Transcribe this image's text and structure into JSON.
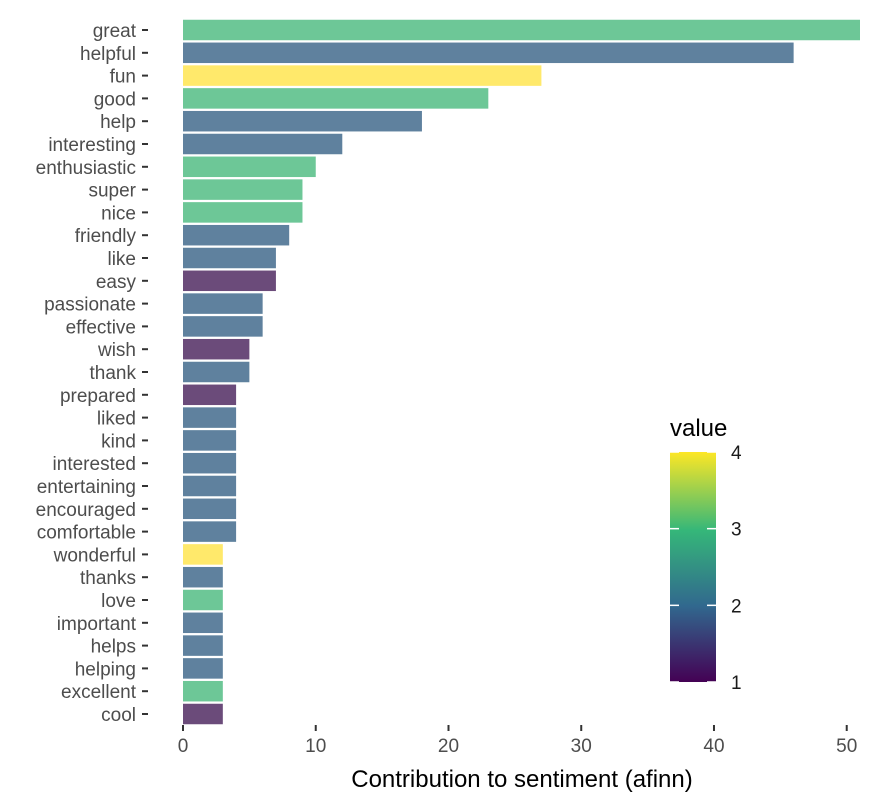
{
  "chart_data": {
    "type": "bar",
    "orientation": "horizontal",
    "xlabel": "Contribution to sentiment (afinn)",
    "ylabel": "",
    "xlim": [
      0,
      51
    ],
    "xticks": [
      0,
      10,
      20,
      30,
      40,
      50
    ],
    "grid": false,
    "categories": [
      "great",
      "helpful",
      "fun",
      "good",
      "help",
      "interesting",
      "enthusiastic",
      "super",
      "nice",
      "friendly",
      "like",
      "easy",
      "passionate",
      "effective",
      "wish",
      "thank",
      "prepared",
      "liked",
      "kind",
      "interested",
      "entertaining",
      "encouraged",
      "comfortable",
      "wonderful",
      "thanks",
      "love",
      "important",
      "helps",
      "helping",
      "excellent",
      "cool"
    ],
    "values": [
      51,
      46,
      27,
      23,
      18,
      12,
      10,
      9,
      9,
      8,
      7,
      7,
      6,
      6,
      5,
      5,
      4,
      4,
      4,
      4,
      4,
      4,
      4,
      3,
      3,
      3,
      3,
      3,
      3,
      3,
      3
    ],
    "color_values": [
      3,
      2,
      4,
      3,
      2,
      2,
      3,
      3,
      3,
      2,
      2,
      1,
      2,
      2,
      1,
      2,
      1,
      2,
      2,
      2,
      2,
      2,
      2,
      4,
      2,
      3,
      2,
      2,
      2,
      3,
      1
    ],
    "legend": {
      "title": "value",
      "placement": "right",
      "range": [
        1,
        4
      ],
      "ticks": [
        1,
        2,
        3,
        4
      ]
    },
    "colors": {
      "1": "#6b4b7a",
      "2": "#5f819e",
      "3": "#6dc797",
      "4": "#ffe96b"
    },
    "colorscale": [
      "#440154",
      "#31688e",
      "#35b779",
      "#fde725"
    ]
  }
}
